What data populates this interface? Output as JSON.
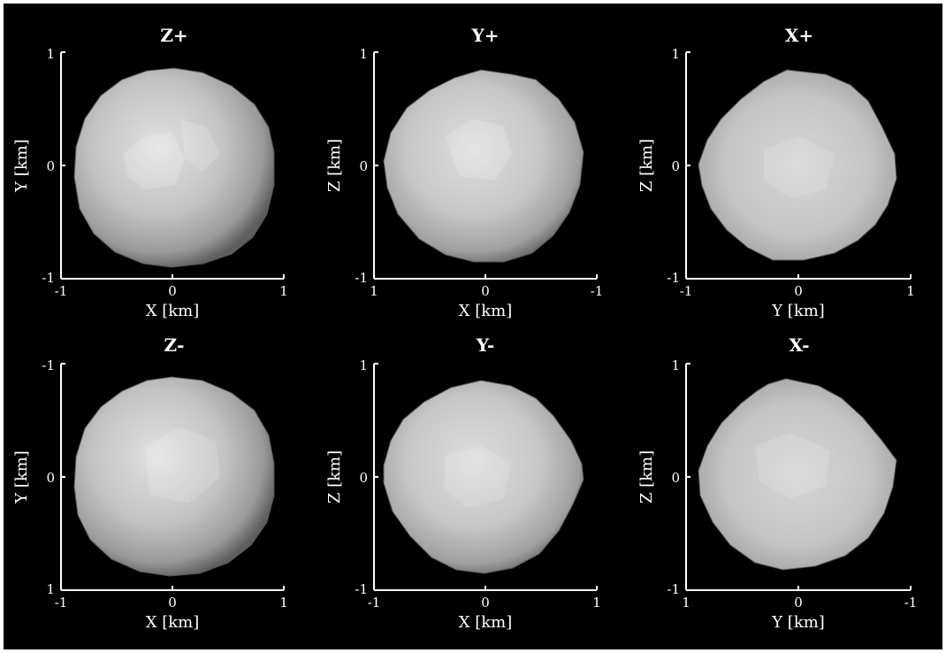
{
  "panels": [
    {
      "title": "Z+",
      "xlabel": "X [km]",
      "ylabel": "Y [km]",
      "xticks": [
        "-1",
        "0",
        "1"
      ],
      "yticks": [
        "1",
        "0",
        "-1"
      ]
    },
    {
      "title": "Y+",
      "xlabel": "X [km]",
      "ylabel": "Z [km]",
      "xticks": [
        "1",
        "0",
        "-1"
      ],
      "yticks": [
        "1",
        "0",
        "-1"
      ]
    },
    {
      "title": "X+",
      "xlabel": "Y [km]",
      "ylabel": "Z [km]",
      "xticks": [
        "-1",
        "0",
        "1"
      ],
      "yticks": [
        "1",
        "0",
        "-1"
      ]
    },
    {
      "title": "Z-",
      "xlabel": "X [km]",
      "ylabel": "Y [km]",
      "xticks": [
        "-1",
        "0",
        "1"
      ],
      "yticks": [
        "-1",
        "0",
        "1"
      ]
    },
    {
      "title": "Y-",
      "xlabel": "X [km]",
      "ylabel": "Z [km]",
      "xticks": [
        "-1",
        "0",
        "1"
      ],
      "yticks": [
        "1",
        "0",
        "-1"
      ]
    },
    {
      "title": "X-",
      "xlabel": "Y [km]",
      "ylabel": "Z [km]",
      "xticks": [
        "1",
        "0",
        "-1"
      ],
      "yticks": [
        "1",
        "0",
        "-1"
      ]
    }
  ],
  "colors": {
    "background": "#000000",
    "axes": "#ffffff",
    "surface_light": "#e0e0e0",
    "surface_dark": "#6a6a6a"
  }
}
